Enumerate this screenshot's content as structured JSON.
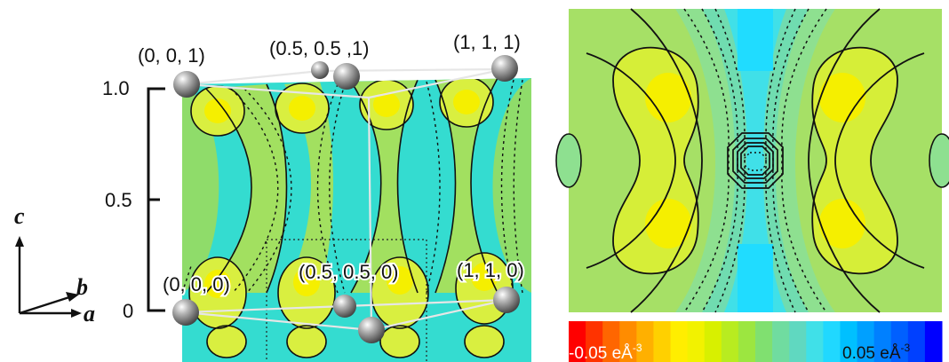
{
  "left_panel": {
    "atom_labels": {
      "top_left": "(0, 0, 1)",
      "top_mid": "(0.5, 0.5 ,1)",
      "top_right": "(1, 1, 1)",
      "bottom_left": "(0, 0, 0)",
      "bottom_mid": "(0.5, 0.5, 0)",
      "bottom_right": "(1, 1, 0)"
    },
    "scale_ticks": [
      "1.0",
      "0.5",
      "0"
    ],
    "axes": {
      "c": "c",
      "b": "b",
      "a": "a"
    }
  },
  "colorbar": {
    "min_label": "-0.05 eÅ",
    "max_label": "0.05 eÅ",
    "exponent": "-3",
    "colors": [
      "#ff0000",
      "#ff3300",
      "#ff6600",
      "#ff8c00",
      "#ffb000",
      "#ffd000",
      "#ffee00",
      "#f2f200",
      "#d8f000",
      "#b8ec20",
      "#9ce640",
      "#80e070",
      "#70dca0",
      "#60d8c0",
      "#40e0e8",
      "#20d8ff",
      "#00c0ff",
      "#00a0ff",
      "#0080ff",
      "#0060ff",
      "#0040ff",
      "#0000ff"
    ]
  }
}
